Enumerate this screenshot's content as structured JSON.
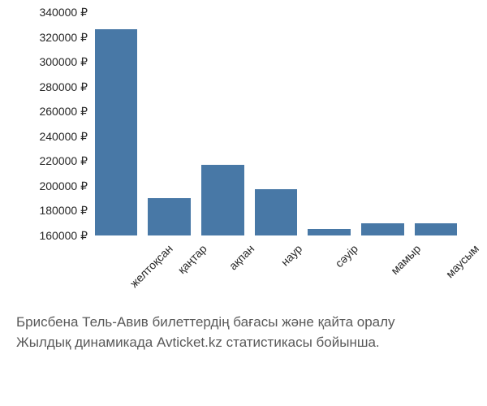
{
  "chart": {
    "type": "bar",
    "background_color": "#ffffff",
    "bar_color": "#4878a6",
    "axis_text_color": "#262626",
    "caption_color": "#595959",
    "label_fontsize": 14,
    "caption_fontsize": 17,
    "ylim": [
      160000,
      340000
    ],
    "ytick_step": 20000,
    "y_suffix": " ₽",
    "y_ticks": [
      160000,
      180000,
      200000,
      220000,
      240000,
      260000,
      280000,
      300000,
      320000,
      340000
    ],
    "categories": [
      "желтоқсан",
      "қаңтар",
      "ақпан",
      "наур",
      "сәуір",
      "мамыр",
      "маусым"
    ],
    "values": [
      326000,
      190000,
      217000,
      197000,
      165000,
      170000,
      170000
    ],
    "bar_width": 0.8
  },
  "caption": {
    "line1": "Брисбена Тель-Авив билеттердің бағасы және қайта оралу",
    "line2": "Жылдық динамикада Avticket.kz статистикасы бойынша."
  }
}
